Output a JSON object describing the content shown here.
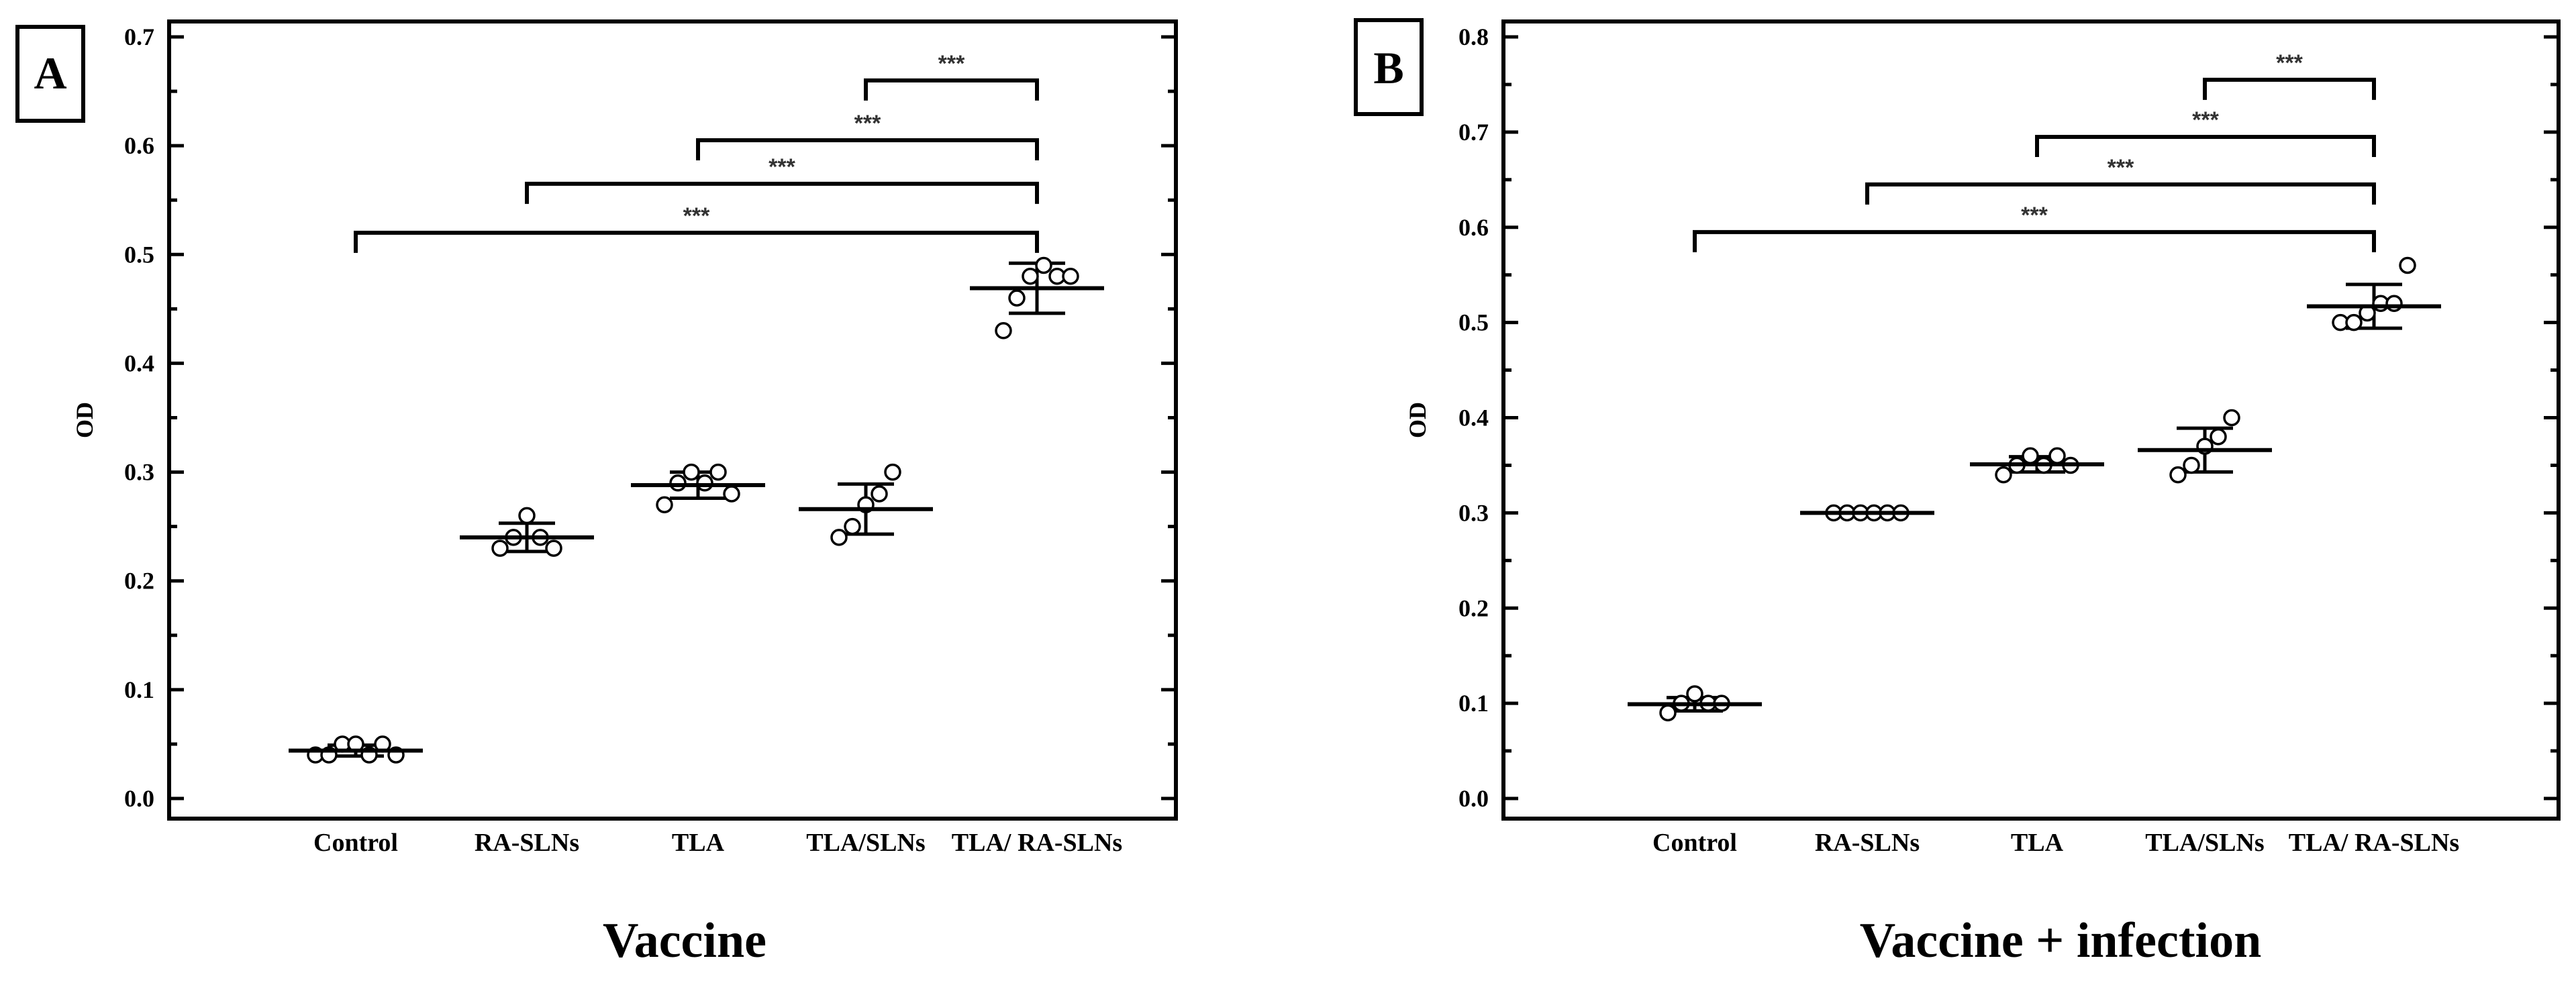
{
  "chart_data": [
    {
      "panel_label": "A",
      "type": "scatter",
      "categories": [
        "Control",
        "RA-SLNs",
        "TLA",
        "TLA/SLNs",
        "TLA/ RA-SLNs"
      ],
      "ylabel": "OD",
      "xlabel": "Vaccine",
      "ylim": [
        0,
        0.7
      ],
      "yticks": [
        "0.0",
        "0.1",
        "0.2",
        "0.3",
        "0.4",
        "0.5",
        "0.6",
        "0.7"
      ],
      "grid": false,
      "points": [
        [
          0.04,
          0.04,
          0.05,
          0.05,
          0.04,
          0.05,
          0.04
        ],
        [
          0.23,
          0.24,
          0.26,
          0.24,
          0.23
        ],
        [
          0.27,
          0.29,
          0.3,
          0.29,
          0.3,
          0.28
        ],
        [
          0.24,
          0.25,
          0.27,
          0.28,
          0.3
        ],
        [
          0.43,
          0.46,
          0.48,
          0.49,
          0.48,
          0.48
        ]
      ],
      "mean": [
        0.044,
        0.24,
        0.288,
        0.266,
        0.469
      ],
      "sd": [
        0.005,
        0.013,
        0.012,
        0.023,
        0.023
      ],
      "comparisons": [
        {
          "from": 0,
          "to": 4,
          "y": 0.52,
          "label": "***"
        },
        {
          "from": 1,
          "to": 4,
          "y": 0.565,
          "label": "***"
        },
        {
          "from": 2,
          "to": 4,
          "y": 0.605,
          "label": "***"
        },
        {
          "from": 3,
          "to": 4,
          "y": 0.66,
          "label": "***"
        }
      ]
    },
    {
      "panel_label": "B",
      "type": "scatter",
      "categories": [
        "Control",
        "RA-SLNs",
        "TLA",
        "TLA/SLNs",
        "TLA/ RA-SLNs"
      ],
      "ylabel": "OD",
      "xlabel": "Vaccine + infection",
      "ylim": [
        0,
        0.8
      ],
      "yticks": [
        "0.0",
        "0.1",
        "0.2",
        "0.3",
        "0.4",
        "0.5",
        "0.6",
        "0.7",
        "0.8"
      ],
      "grid": false,
      "points": [
        [
          0.09,
          0.1,
          0.11,
          0.1,
          0.1
        ],
        [
          0.3,
          0.3,
          0.3,
          0.3,
          0.3,
          0.3
        ],
        [
          0.34,
          0.35,
          0.36,
          0.35,
          0.36,
          0.35
        ],
        [
          0.34,
          0.35,
          0.37,
          0.38,
          0.4
        ],
        [
          0.5,
          0.5,
          0.51,
          0.52,
          0.52,
          0.56
        ]
      ],
      "mean": [
        0.099,
        0.3,
        0.351,
        0.366,
        0.517
      ],
      "sd": [
        0.007,
        0.0,
        0.008,
        0.023,
        0.023
      ],
      "comparisons": [
        {
          "from": 0,
          "to": 4,
          "y": 0.595,
          "label": "***"
        },
        {
          "from": 1,
          "to": 4,
          "y": 0.645,
          "label": "***"
        },
        {
          "from": 2,
          "to": 4,
          "y": 0.695,
          "label": "***"
        },
        {
          "from": 3,
          "to": 4,
          "y": 0.755,
          "label": "***"
        }
      ]
    }
  ]
}
